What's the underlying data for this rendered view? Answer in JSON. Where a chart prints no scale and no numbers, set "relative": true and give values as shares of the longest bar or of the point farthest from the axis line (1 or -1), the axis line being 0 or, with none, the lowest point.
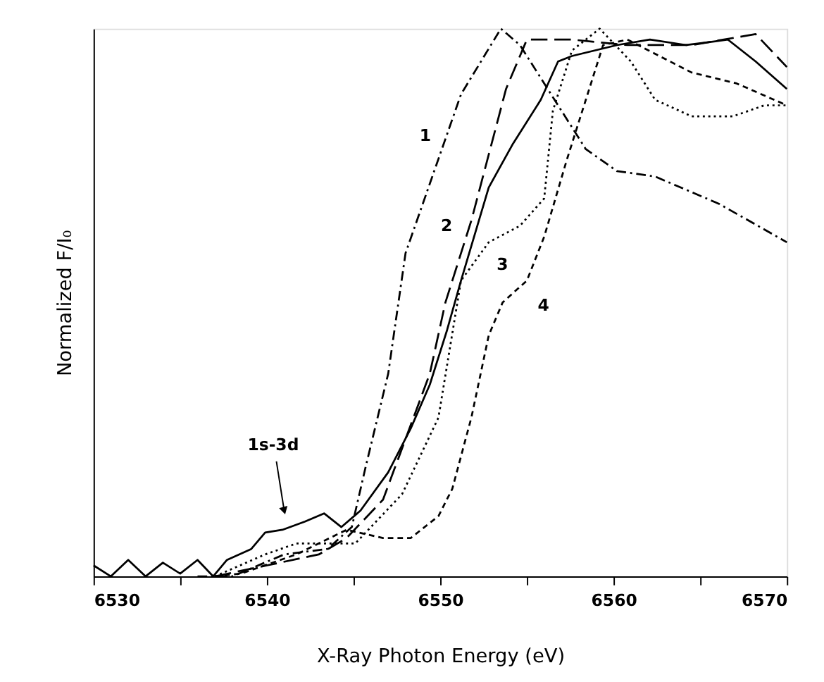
{
  "chart_data": {
    "type": "line",
    "relative": true,
    "xlabel": "X-Ray Photon Energy (eV)",
    "ylabel": "Normalized F/I₀",
    "xlim": [
      6530,
      6570
    ],
    "xticks": [
      6530,
      {
        "value": 6535,
        "label": null
      },
      6540,
      {
        "value": 6545,
        "label": null
      },
      6550,
      {
        "value": 6555,
        "label": null
      },
      6560,
      {
        "value": 6565,
        "label": null
      },
      6570
    ],
    "grid": false,
    "marker": "none",
    "annotations": [
      {
        "text": "1s-3d",
        "x": 6541.0,
        "y": 0.12
      }
    ],
    "series": [
      {
        "name": "1",
        "color": "#000000",
        "line_style": "dashed",
        "x": [
          6536,
          6538,
          6541,
          6543.5,
          6544.9,
          6545.7,
          6547.0,
          6548.0,
          6551.2,
          6553.5,
          6554.6,
          6556.6,
          6558.4,
          6560.2,
          6562.4,
          6566.1,
          6570
        ],
        "values": [
          0.0,
          0.0,
          0.04,
          0.05,
          0.09,
          0.2,
          0.37,
          0.59,
          0.88,
          1.0,
          0.97,
          0.87,
          0.78,
          0.74,
          0.73,
          0.68,
          0.61
        ]
      },
      {
        "name": "2",
        "color": "#000000",
        "line_style": "dashed",
        "x": [
          6537,
          6540,
          6543.0,
          6544.6,
          6546.7,
          6549.4,
          6550.3,
          6551.8,
          6552.8,
          6553.8,
          6555.0,
          6557.6,
          6560.8,
          6564.5,
          6568.2,
          6570
        ],
        "values": [
          0.0,
          0.02,
          0.04,
          0.07,
          0.14,
          0.37,
          0.5,
          0.65,
          0.77,
          0.89,
          0.98,
          0.98,
          0.97,
          0.97,
          0.99,
          0.93
        ]
      },
      {
        "name": "3",
        "color": "#000000",
        "line_style": "dotted",
        "x": [
          6537,
          6539.9,
          6541.7,
          6545.1,
          6547.8,
          6549.9,
          6551.2,
          6552.8,
          6554.6,
          6556.0,
          6556.5,
          6557.6,
          6559.2,
          6561.0,
          6562.4,
          6564.5,
          6566.9,
          6568.7,
          6570
        ],
        "values": [
          0.0,
          0.04,
          0.06,
          0.06,
          0.15,
          0.29,
          0.54,
          0.61,
          0.64,
          0.69,
          0.85,
          0.96,
          1.0,
          0.94,
          0.87,
          0.84,
          0.84,
          0.86,
          0.86
        ]
      },
      {
        "name": "4",
        "color": "#000000",
        "line_style": "dashed",
        "x": [
          6537,
          6538.5,
          6541.7,
          6544.6,
          6546.7,
          6548.3,
          6549.9,
          6550.7,
          6551.8,
          6552.8,
          6553.6,
          6555.0,
          6556.0,
          6557.3,
          6558.4,
          6559.4,
          6560.8,
          6564.5,
          6567.1,
          6570
        ],
        "values": [
          0.0,
          0.005,
          0.04,
          0.085,
          0.07,
          0.07,
          0.11,
          0.16,
          0.29,
          0.44,
          0.5,
          0.54,
          0.62,
          0.76,
          0.87,
          0.97,
          0.98,
          0.92,
          0.9,
          0.86
        ]
      },
      {
        "color": "#000000",
        "line_style": "solid",
        "x": [
          6530,
          6531,
          6532,
          6533,
          6534,
          6535,
          6536,
          6536.9,
          6537.7,
          6539.1,
          6539.9,
          6540.9,
          6542.2,
          6543.3,
          6544.3,
          6545.4,
          6547.0,
          6548.3,
          6549.4,
          6550.4,
          6551.2,
          6552.8,
          6554.2,
          6555.8,
          6556.8,
          6557.6,
          6558.9,
          6560.2,
          6562.1,
          6564.2,
          6566.6,
          6568.2,
          6570
        ],
        "values": [
          0.02,
          0.0,
          0.03,
          0.0,
          0.025,
          0.005,
          0.03,
          0.0,
          0.03,
          0.05,
          0.08,
          0.085,
          0.1,
          0.115,
          0.09,
          0.12,
          0.19,
          0.27,
          0.35,
          0.45,
          0.54,
          0.71,
          0.79,
          0.87,
          0.94,
          0.95,
          0.96,
          0.97,
          0.98,
          0.97,
          0.98,
          0.94,
          0.89
        ]
      }
    ]
  }
}
